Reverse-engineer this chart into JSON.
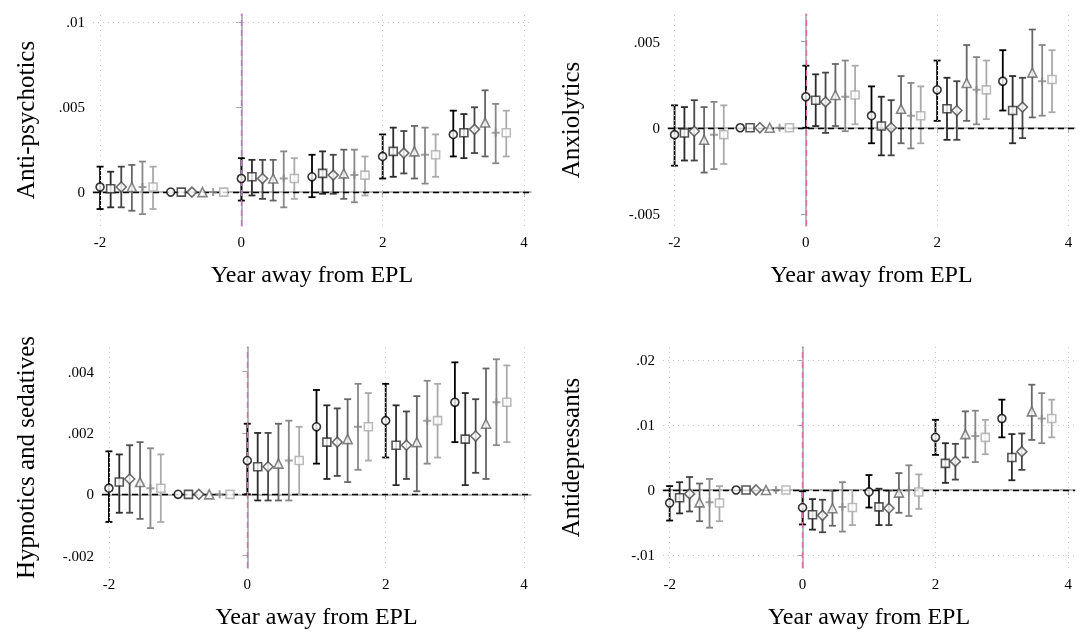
{
  "chart_data": [
    {
      "type": "scatter",
      "xlabel": "Year away from EPL",
      "ylabel": "Anti-psychotics",
      "xlim": [
        -2.1,
        4.1
      ],
      "xticks": [
        -2,
        0,
        2,
        4
      ],
      "ylim": [
        -0.002,
        0.0105
      ],
      "yticks": [
        {
          "value": 0,
          "label": "0"
        },
        {
          "value": 0.005,
          "label": ".005"
        },
        {
          "value": 0.01,
          "label": ".01"
        }
      ],
      "grid": true,
      "ref_lines": [
        {
          "axis": "y",
          "value": 0,
          "color": "#000000",
          "line_style": "dashed"
        },
        {
          "axis": "x",
          "value": 0,
          "color": "#d66fad",
          "line_style": "dashed"
        }
      ],
      "series": [
        {
          "color": "#000000",
          "marker": "circle",
          "x": [
            -2,
            -1,
            0,
            1,
            2,
            3
          ],
          "values": [
            0.0003,
            0,
            0.0008,
            0.0009,
            0.0021,
            0.0034
          ],
          "errors": [
            [
              -0.001,
              0.0015
            ],
            null,
            [
              -0.0005,
              0.002
            ],
            [
              -0.0003,
              0.0022
            ],
            [
              0.0008,
              0.0034
            ],
            [
              0.0021,
              0.0048
            ]
          ]
        },
        {
          "color": "#2b2b2b",
          "marker": "square",
          "x": [
            -1.85,
            -0.85,
            0.15,
            1.15,
            2.15,
            3.15
          ],
          "values": [
            0.0002,
            0,
            0.0009,
            0.0011,
            0.0024,
            0.0035
          ],
          "errors": [
            [
              -0.0009,
              0.0012
            ],
            null,
            [
              -0.0002,
              0.0019
            ],
            [
              -0.0001,
              0.0024
            ],
            [
              0.0009,
              0.0038
            ],
            [
              0.002,
              0.0046
            ]
          ]
        },
        {
          "color": "#474747",
          "marker": "diamond",
          "x": [
            -1.7,
            -0.7,
            0.3,
            1.3,
            2.3,
            3.3
          ],
          "values": [
            0.0003,
            0,
            0.0008,
            0.001,
            0.0023,
            0.0037
          ],
          "errors": [
            [
              -0.0009,
              0.0015
            ],
            null,
            [
              -0.0004,
              0.0019
            ],
            [
              -0.0001,
              0.0022
            ],
            [
              0.0011,
              0.0036
            ],
            [
              0.0023,
              0.005
            ]
          ]
        },
        {
          "color": "#666666",
          "marker": "triangle",
          "x": [
            -1.55,
            -0.55,
            0.45,
            1.45,
            2.45,
            3.45
          ],
          "values": [
            0.0003,
            0,
            0.0008,
            0.0011,
            0.0024,
            0.0041
          ],
          "errors": [
            [
              -0.0011,
              0.0016
            ],
            null,
            [
              -0.0005,
              0.0019
            ],
            [
              -0.0004,
              0.0025
            ],
            [
              0.0008,
              0.0039
            ],
            [
              0.0021,
              0.006
            ]
          ]
        },
        {
          "color": "#888888",
          "marker": "cross",
          "x": [
            -1.4,
            -0.4,
            0.6,
            1.6,
            2.6,
            3.6
          ],
          "values": [
            0.0003,
            0,
            0.0008,
            0.001,
            0.0022,
            0.0035
          ],
          "errors": [
            [
              -0.0013,
              0.0018
            ],
            null,
            [
              -0.0009,
              0.0024
            ],
            [
              -0.0006,
              0.0025
            ],
            [
              0.0005,
              0.0038
            ],
            [
              0.0017,
              0.0052
            ]
          ]
        },
        {
          "color": "#aaaaaa",
          "marker": "square",
          "x": [
            -1.25,
            -0.25,
            0.75,
            1.75,
            2.75,
            3.75
          ],
          "values": [
            0.0003,
            0,
            0.0008,
            0.001,
            0.0022,
            0.0035
          ],
          "errors": [
            [
              -0.001,
              0.0015
            ],
            null,
            [
              -0.0004,
              0.002
            ],
            [
              -0.0002,
              0.0021
            ],
            [
              0.0009,
              0.0034
            ],
            [
              0.0021,
              0.0048
            ]
          ]
        }
      ]
    },
    {
      "type": "scatter",
      "xlabel": "Year away from EPL",
      "ylabel": "Anxiolytics",
      "xlim": [
        -2.1,
        4.1
      ],
      "xticks": [
        -2,
        0,
        2,
        4
      ],
      "ylim": [
        -0.0057,
        0.0066
      ],
      "yticks": [
        {
          "value": -0.005,
          "label": "-.005"
        },
        {
          "value": 0,
          "label": "0"
        },
        {
          "value": 0.005,
          "label": ".005"
        }
      ],
      "grid": true,
      "ref_lines": [
        {
          "axis": "y",
          "value": 0,
          "color": "#000000",
          "line_style": "dashed"
        },
        {
          "axis": "x",
          "value": 0,
          "color": "#d66fad",
          "line_style": "dashed"
        }
      ],
      "series": [
        {
          "color": "#000000",
          "marker": "circle",
          "x": [
            -2,
            -1,
            0,
            1,
            2,
            3
          ],
          "values": [
            -0.0004,
            0,
            0.0018,
            0.0007,
            0.0022,
            0.0027
          ],
          "errors": [
            [
              -0.0022,
              0.0013
            ],
            null,
            [
              0,
              0.0036
            ],
            [
              -0.0009,
              0.0024
            ],
            [
              0.0004,
              0.0039
            ],
            [
              0.001,
              0.0045
            ]
          ]
        },
        {
          "color": "#2b2b2b",
          "marker": "square",
          "x": [
            -1.85,
            -0.85,
            0.15,
            1.15,
            2.15,
            3.15
          ],
          "values": [
            -0.0003,
            0,
            0.0016,
            0.0001,
            0.0011,
            0.001
          ],
          "errors": [
            [
              -0.0019,
              0.0012
            ],
            null,
            [
              0.0001,
              0.0031
            ],
            [
              -0.0016,
              0.0018
            ],
            [
              -0.0007,
              0.0029
            ],
            [
              -0.0009,
              0.003
            ]
          ]
        },
        {
          "color": "#474747",
          "marker": "diamond",
          "x": [
            -1.7,
            -0.7,
            0.3,
            1.3,
            2.3,
            3.3
          ],
          "values": [
            -0.0002,
            0,
            0.0015,
            0,
            0.001,
            0.0012
          ],
          "errors": [
            [
              -0.0019,
              0.0016
            ],
            null,
            [
              -0.0003,
              0.0032
            ],
            [
              -0.0016,
              0.0016
            ],
            [
              -0.0007,
              0.0027
            ],
            [
              -0.0006,
              0.0029
            ]
          ]
        },
        {
          "color": "#666666",
          "marker": "triangle",
          "x": [
            -1.55,
            -0.55,
            0.45,
            1.45,
            2.45,
            3.45
          ],
          "values": [
            -0.0007,
            0,
            0.0019,
            0.0011,
            0.0026,
            0.0032
          ],
          "errors": [
            [
              -0.0026,
              0.0012
            ],
            null,
            [
              0.0001,
              0.0037
            ],
            [
              -0.0009,
              0.003
            ],
            [
              0.0004,
              0.0048
            ],
            [
              0.0006,
              0.0057
            ]
          ]
        },
        {
          "color": "#888888",
          "marker": "cross",
          "x": [
            -1.4,
            -0.4,
            0.6,
            1.6,
            2.6,
            3.6
          ],
          "values": [
            -0.0004,
            0,
            0.0018,
            0.0007,
            0.0022,
            0.0027
          ],
          "errors": [
            [
              -0.0024,
              0.0015
            ],
            null,
            [
              -0.0002,
              0.0039
            ],
            [
              -0.0012,
              0.0026
            ],
            [
              0.0002,
              0.0041
            ],
            [
              0.0007,
              0.0048
            ]
          ]
        },
        {
          "color": "#aaaaaa",
          "marker": "square",
          "x": [
            -1.25,
            -0.25,
            0.75,
            1.75,
            2.75,
            3.75
          ],
          "values": [
            -0.0004,
            0,
            0.0019,
            0.0007,
            0.0022,
            0.0028
          ],
          "errors": [
            [
              -0.0021,
              0.0013
            ],
            null,
            [
              0.0002,
              0.0036
            ],
            [
              -0.0009,
              0.0024
            ],
            [
              0.0005,
              0.0039
            ],
            [
              0.0009,
              0.0045
            ]
          ]
        }
      ]
    },
    {
      "type": "scatter",
      "xlabel": "Year away from EPL",
      "ylabel": "Hypnotics and sedatives",
      "xlim": [
        -2.1,
        4.1
      ],
      "xticks": [
        -2,
        0,
        2,
        4
      ],
      "ylim": [
        -0.0024,
        0.0048
      ],
      "yticks": [
        {
          "value": -0.002,
          "label": "-.002"
        },
        {
          "value": 0,
          "label": "0"
        },
        {
          "value": 0.002,
          "label": ".002"
        },
        {
          "value": 0.004,
          "label": ".004"
        }
      ],
      "grid": true,
      "ref_lines": [
        {
          "axis": "y",
          "value": 0,
          "color": "#000000",
          "line_style": "dashed"
        },
        {
          "axis": "x",
          "value": 0,
          "color": "#d66fad",
          "line_style": "dashed"
        }
      ],
      "series": [
        {
          "color": "#000000",
          "marker": "circle",
          "x": [
            -2,
            -1,
            0,
            1,
            2,
            3
          ],
          "values": [
            0.0002,
            0,
            0.0011,
            0.0022,
            0.0024,
            0.003
          ],
          "errors": [
            [
              -0.0009,
              0.0014
            ],
            null,
            [
              0,
              0.0023
            ],
            [
              0.001,
              0.0034
            ],
            [
              0.0012,
              0.0036
            ],
            [
              0.0017,
              0.0043
            ]
          ]
        },
        {
          "color": "#2b2b2b",
          "marker": "square",
          "x": [
            -1.85,
            -0.85,
            0.15,
            1.15,
            2.15,
            3.15
          ],
          "values": [
            0.0004,
            0,
            0.0009,
            0.0017,
            0.0016,
            0.0018
          ],
          "errors": [
            [
              -0.0006,
              0.0013
            ],
            null,
            [
              -0.0002,
              0.002
            ],
            [
              0.0005,
              0.0029
            ],
            [
              0.0003,
              0.0029
            ],
            [
              0.0003,
              0.0033
            ]
          ]
        },
        {
          "color": "#474747",
          "marker": "diamond",
          "x": [
            -1.7,
            -0.7,
            0.3,
            1.3,
            2.3,
            3.3
          ],
          "values": [
            0.0005,
            0,
            0.0009,
            0.0017,
            0.0016,
            0.0019
          ],
          "errors": [
            [
              -0.0006,
              0.0016
            ],
            null,
            [
              -0.0002,
              0.002
            ],
            [
              0.0006,
              0.0028
            ],
            [
              0.0005,
              0.0027
            ],
            [
              0.0007,
              0.0031
            ]
          ]
        },
        {
          "color": "#666666",
          "marker": "triangle",
          "x": [
            -1.55,
            -0.55,
            0.45,
            1.45,
            2.45,
            3.45
          ],
          "values": [
            0.0004,
            0,
            0.001,
            0.0018,
            0.0017,
            0.0023
          ],
          "errors": [
            [
              -0.0008,
              0.0017
            ],
            null,
            [
              -0.0002,
              0.0023
            ],
            [
              0.0004,
              0.0031
            ],
            [
              0.0001,
              0.0032
            ],
            [
              0.0005,
              0.0041
            ]
          ]
        },
        {
          "color": "#888888",
          "marker": "cross",
          "x": [
            -1.4,
            -0.4,
            0.6,
            1.6,
            2.6,
            3.6
          ],
          "values": [
            0.0002,
            0,
            0.0011,
            0.0022,
            0.0024,
            0.003
          ],
          "errors": [
            [
              -0.0011,
              0.0015
            ],
            null,
            [
              -0.0002,
              0.0024
            ],
            [
              0.0008,
              0.0036
            ],
            [
              0.001,
              0.0037
            ],
            [
              0.0016,
              0.0044
            ]
          ]
        },
        {
          "color": "#aaaaaa",
          "marker": "square",
          "x": [
            -1.25,
            -0.25,
            0.75,
            1.75,
            2.75,
            3.75
          ],
          "values": [
            0.0002,
            0,
            0.0011,
            0.0022,
            0.0024,
            0.003
          ],
          "errors": [
            [
              -0.0009,
              0.0013
            ],
            null,
            [
              0,
              0.0022
            ],
            [
              0.0011,
              0.0033
            ],
            [
              0.0012,
              0.0036
            ],
            [
              0.0017,
              0.0042
            ]
          ]
        }
      ]
    },
    {
      "type": "scatter",
      "xlabel": "Year away from EPL",
      "ylabel": "Antidepressants",
      "xlim": [
        -2.1,
        4.1
      ],
      "xticks": [
        -2,
        0,
        2,
        4
      ],
      "ylim": [
        -0.012,
        0.022
      ],
      "yticks": [
        {
          "value": -0.01,
          "label": "-.01"
        },
        {
          "value": 0,
          "label": "0"
        },
        {
          "value": 0.01,
          "label": ".01"
        },
        {
          "value": 0.02,
          "label": ".02"
        }
      ],
      "grid": true,
      "ref_lines": [
        {
          "axis": "y",
          "value": 0,
          "color": "#000000",
          "line_style": "dashed"
        },
        {
          "axis": "x",
          "value": 0,
          "color": "#d66fad",
          "line_style": "dashed"
        }
      ],
      "series": [
        {
          "color": "#000000",
          "marker": "circle",
          "x": [
            -2,
            -1,
            0,
            1,
            2,
            3
          ],
          "values": [
            -0.002,
            0,
            -0.0027,
            -0.0003,
            0.0081,
            0.011
          ],
          "errors": [
            [
              -0.0047,
              0.0006
            ],
            null,
            [
              -0.0053,
              -0.0002
            ],
            [
              -0.0027,
              0.0023
            ],
            [
              0.0054,
              0.0108
            ],
            [
              0.0081,
              0.0139
            ]
          ]
        },
        {
          "color": "#2b2b2b",
          "marker": "square",
          "x": [
            -1.85,
            -0.85,
            0.15,
            1.15,
            2.15,
            3.15
          ],
          "values": [
            -0.0012,
            0,
            -0.0038,
            -0.0026,
            0.0041,
            0.005
          ],
          "errors": [
            [
              -0.0036,
              0.0012
            ],
            null,
            [
              -0.0061,
              -0.0014
            ],
            [
              -0.0054,
              0.0002
            ],
            [
              0.0011,
              0.0072
            ],
            [
              0.0015,
              0.0086
            ]
          ]
        },
        {
          "color": "#474747",
          "marker": "diamond",
          "x": [
            -1.7,
            -0.7,
            0.3,
            1.3,
            2.3,
            3.3
          ],
          "values": [
            -0.0006,
            0,
            -0.0039,
            -0.0028,
            0.0044,
            0.0059
          ],
          "errors": [
            [
              -0.0033,
              0.002
            ],
            null,
            [
              -0.0065,
              -0.0015
            ],
            [
              -0.0054,
              -0.0001
            ],
            [
              0.0016,
              0.0071
            ],
            [
              0.0031,
              0.0087
            ]
          ]
        },
        {
          "color": "#666666",
          "marker": "triangle",
          "x": [
            -1.55,
            -0.55,
            0.45,
            1.45,
            2.45,
            3.45
          ],
          "values": [
            -0.0019,
            0,
            -0.0028,
            -0.0004,
            0.0086,
            0.0121
          ],
          "errors": [
            [
              -0.0048,
              0.001
            ],
            null,
            [
              -0.0055,
              -0.0001
            ],
            [
              -0.0035,
              0.0026
            ],
            [
              0.005,
              0.0121
            ],
            [
              0.0077,
              0.0162
            ]
          ]
        },
        {
          "color": "#888888",
          "marker": "cross",
          "x": [
            -1.4,
            -0.4,
            0.6,
            1.6,
            2.6,
            3.6
          ],
          "values": [
            -0.0019,
            0,
            -0.0026,
            0,
            0.0083,
            0.011
          ],
          "errors": [
            [
              -0.0058,
              0.0017
            ],
            null,
            [
              -0.0064,
              0.0012
            ],
            [
              -0.004,
              0.0038
            ],
            [
              0.0043,
              0.0122
            ],
            [
              0.0072,
              0.0149
            ]
          ]
        },
        {
          "color": "#aaaaaa",
          "marker": "square",
          "x": [
            -1.25,
            -0.25,
            0.75,
            1.75,
            2.75,
            3.75
          ],
          "values": [
            -0.002,
            0,
            -0.0027,
            -0.0003,
            0.0081,
            0.011
          ],
          "errors": [
            [
              -0.0048,
              0.0006
            ],
            null,
            [
              -0.0054,
              0
            ],
            [
              -0.0029,
              0.0024
            ],
            [
              0.0055,
              0.0108
            ],
            [
              0.0081,
              0.0139
            ]
          ]
        }
      ]
    }
  ]
}
